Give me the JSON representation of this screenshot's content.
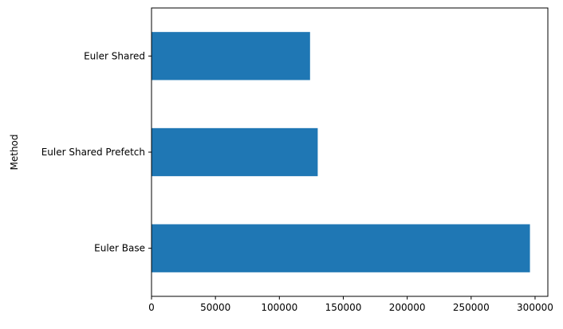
{
  "chart_data": {
    "type": "bar",
    "orientation": "horizontal",
    "categories": [
      "Euler Base",
      "Euler Shared Prefetch",
      "Euler Shared"
    ],
    "values": [
      296000,
      130000,
      124000
    ],
    "xlabel": "",
    "ylabel": "Method",
    "xlim": [
      0,
      310000
    ],
    "xticks": [
      0,
      50000,
      100000,
      150000,
      200000,
      250000,
      300000
    ],
    "grid": false,
    "legend": "none",
    "colors": {
      "bar": "#1f77b4",
      "axis": "#000000"
    }
  }
}
